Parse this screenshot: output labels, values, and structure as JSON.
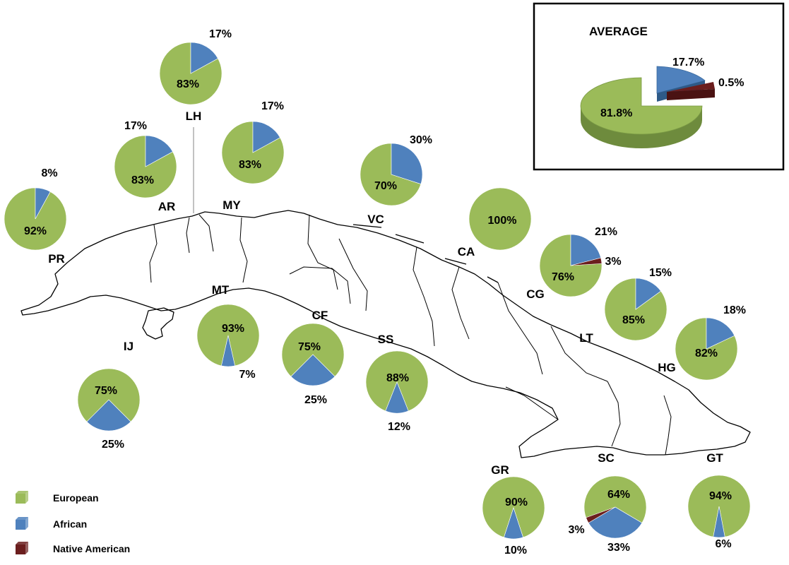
{
  "colors": {
    "European": "#9BBB59",
    "African": "#4F81BD",
    "Native American": "#6B1E1E"
  },
  "legend": [
    {
      "label": "European",
      "color": "#9BBB59",
      "icon": "green-legend-square"
    },
    {
      "label": "African",
      "color": "#4F81BD",
      "icon": "blue-legend-square"
    },
    {
      "label": "Native American",
      "color": "#6B1E1E",
      "icon": "maroon-legend-square"
    }
  ],
  "average": {
    "title": "AVERAGE",
    "european": 81.8,
    "african": 17.7,
    "native": 0.5,
    "labels": {
      "european": "81.8%",
      "african": "17.7%",
      "native": "0.5%"
    }
  },
  "provinces": [
    {
      "code": "PR",
      "european": 92,
      "african": 8,
      "native": 0,
      "texts": {
        "european": "92%",
        "african": "8%"
      }
    },
    {
      "code": "AR",
      "european": 83,
      "african": 17,
      "native": 0,
      "texts": {
        "european": "83%",
        "african": "17%"
      }
    },
    {
      "code": "LH",
      "european": 83,
      "african": 17,
      "native": 0,
      "texts": {
        "european": "83%",
        "african": "17%"
      }
    },
    {
      "code": "MY",
      "european": 83,
      "african": 17,
      "native": 0,
      "texts": {
        "european": "83%",
        "african": "17%"
      }
    },
    {
      "code": "VC",
      "european": 70,
      "african": 30,
      "native": 0,
      "texts": {
        "european": "70%",
        "african": "30%"
      }
    },
    {
      "code": "CA",
      "european": 100,
      "african": 0,
      "native": 0,
      "texts": {
        "european": "100%"
      }
    },
    {
      "code": "CG",
      "european": 76,
      "african": 21,
      "native": 3,
      "texts": {
        "european": "76%",
        "african": "21%",
        "native": "3%"
      }
    },
    {
      "code": "LT",
      "european": 85,
      "african": 15,
      "native": 0,
      "texts": {
        "european": "85%",
        "african": "15%"
      }
    },
    {
      "code": "HG",
      "european": 82,
      "african": 18,
      "native": 0,
      "texts": {
        "european": "82%",
        "african": "18%"
      }
    },
    {
      "code": "MT",
      "european": 93,
      "african": 7,
      "native": 0,
      "texts": {
        "european": "93%",
        "african": "7%"
      }
    },
    {
      "code": "CF",
      "european": 75,
      "african": 25,
      "native": 0,
      "texts": {
        "european": "75%",
        "african": "25%"
      }
    },
    {
      "code": "SS",
      "european": 88,
      "african": 12,
      "native": 0,
      "texts": {
        "european": "88%",
        "african": "12%"
      }
    },
    {
      "code": "IJ",
      "european": 75,
      "african": 25,
      "native": 0,
      "texts": {
        "european": "75%",
        "african": "25%"
      }
    },
    {
      "code": "GR",
      "european": 90,
      "african": 10,
      "native": 0,
      "texts": {
        "european": "90%",
        "african": "10%"
      }
    },
    {
      "code": "SC",
      "european": 64,
      "african": 33,
      "native": 3,
      "texts": {
        "european": "64%",
        "african": "33%",
        "native": "3%"
      }
    },
    {
      "code": "GT",
      "european": 94,
      "african": 6,
      "native": 0,
      "texts": {
        "european": "94%",
        "african": "6%"
      }
    }
  ]
}
